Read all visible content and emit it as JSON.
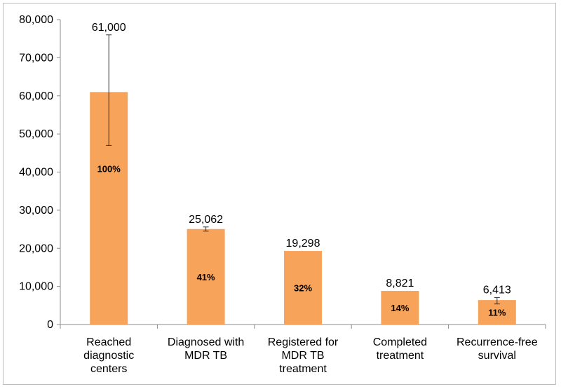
{
  "chart_data": {
    "type": "bar",
    "categories": [
      [
        "Reached",
        "diagnostic",
        "centers"
      ],
      [
        "Diagnosed with",
        "MDR TB"
      ],
      [
        "Registered for",
        "MDR TB",
        "treatment"
      ],
      [
        "Completed",
        "treatment"
      ],
      [
        "Recurrence-free",
        "survival"
      ]
    ],
    "values": [
      61000,
      25062,
      19298,
      8821,
      6413
    ],
    "value_labels": [
      "61,000",
      "25,062",
      "19,298",
      "8,821",
      "6,413"
    ],
    "percent_labels": [
      "100%",
      "41%",
      "32%",
      "14%",
      "11%"
    ],
    "error_bars": [
      {
        "low": 47000,
        "high": 76000
      },
      {
        "low": 24500,
        "high": 25600
      },
      null,
      null,
      {
        "low": 5400,
        "high": 7100
      }
    ],
    "ylim": [
      0,
      80000
    ],
    "yticks": [
      0,
      10000,
      20000,
      30000,
      40000,
      50000,
      60000,
      70000,
      80000
    ],
    "ytick_labels": [
      "0",
      "10,000",
      "20,000",
      "30,000",
      "40,000",
      "50,000",
      "60,000",
      "70,000",
      "80,000"
    ],
    "bar_color": "#f7a35a",
    "grid": false,
    "legend": "none",
    "title": "",
    "xlabel": "",
    "ylabel": ""
  }
}
